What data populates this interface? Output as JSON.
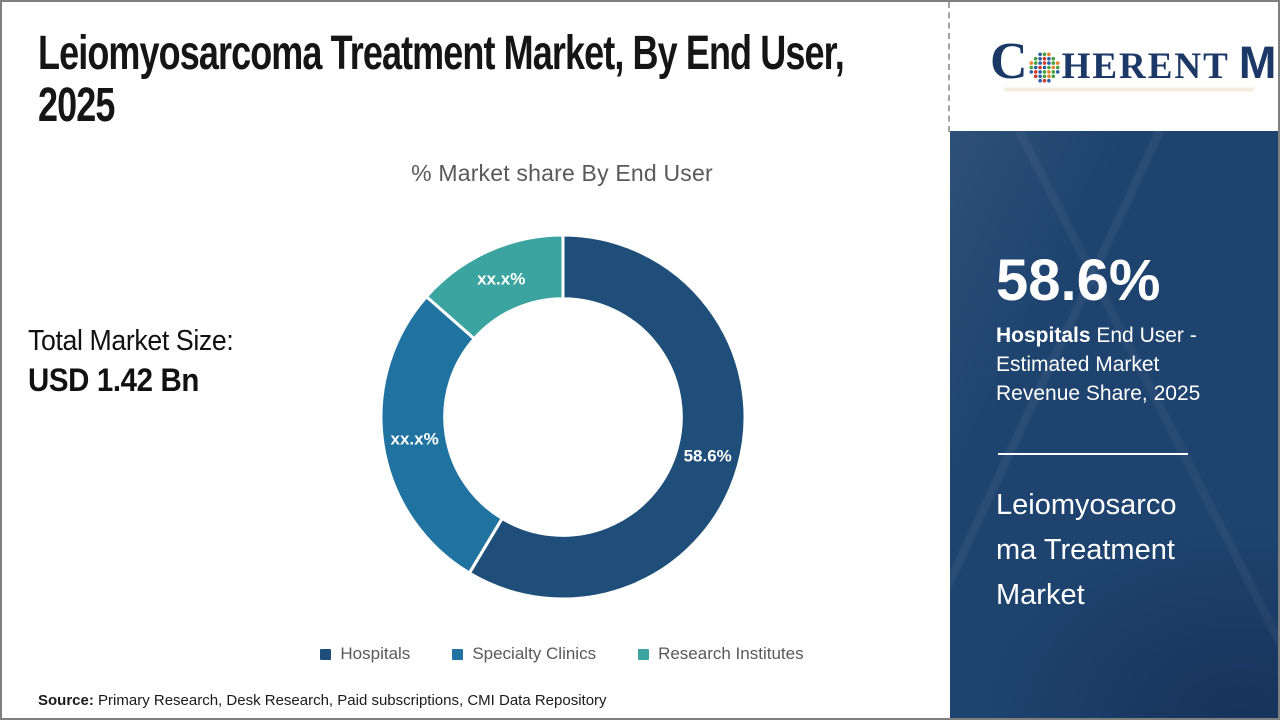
{
  "header": {
    "title": "Leiomyosarcoma Treatment Market, By End User, 2025",
    "title_line1": "Leiomyosarcoma Treatment Market, By End User,",
    "title_line2": "2025",
    "logo": {
      "part_c": "C",
      "part_herent": "HERENT",
      "part_m": "M",
      "navy": "#1B3867",
      "i_accent_color": "#EE7F22"
    }
  },
  "left_stat": {
    "label": "Total Market Size:",
    "value": "USD 1.42 Bn"
  },
  "chart_data": {
    "type": "pie",
    "subtype": "donut",
    "title": "% Market share By End User",
    "categories": [
      "Hospitals",
      "Specialty Clinics",
      "Research Institutes"
    ],
    "values": [
      58.6,
      27.9,
      13.5
    ],
    "value_labels": [
      "58.6%",
      "xx.x%",
      "xx.x%"
    ],
    "colors": [
      "#1E4E79",
      "#2073A0",
      "#3BA4A0"
    ],
    "start_angle_deg": 0,
    "direction": "clockwise",
    "inner_radius_ratio": 0.65,
    "legend_position": "bottom",
    "label_text_color": "#ffffff"
  },
  "sidebar": {
    "background": "#1E436F",
    "stat_value": "58.6%",
    "stat_label_bold": "Hospitals",
    "stat_label_rest": " End User - Estimated Market Revenue Share, 2025",
    "market_name": "Leiomyosarcoma Treatment Market"
  },
  "footer": {
    "source_label": "Source:",
    "source_text": " Primary Research, Desk Research, Paid subscriptions, CMI Data Repository"
  }
}
